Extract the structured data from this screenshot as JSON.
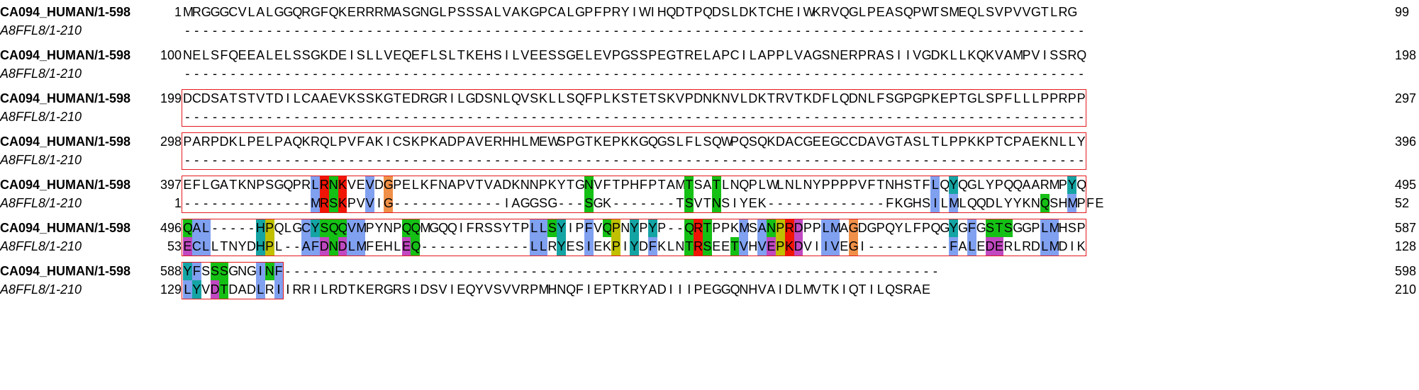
{
  "alignment": {
    "blocks": [
      {
        "top": {
          "name": "CA094_HUMAN/1-598",
          "start": "1",
          "seq": "MRGGGCVLALGGQRGFQKERRRMASGNGLPSSSALVAKGPCALGPFPRYIWIHQDTPQDSLDKTCHEIWKRVQGLPEASQPWTSMEQLSVPVVGTLRG",
          "end": "99"
        },
        "bottom": {
          "name": "A8FFL8/1-210",
          "start": "",
          "seq": "---------------------------------------------------------------------------------------------------",
          "end": ""
        },
        "frame_cols": null
      },
      {
        "top": {
          "name": "CA094_HUMAN/1-598",
          "start": "100",
          "seq": "NELSFQEEALELSSGKDEISLLVEQEFLSLTKEHSILVEESSGELEVPGSSPEGTRELAPCILAPPLVAGSNERPRASIIVGDKLLKQKVAMPVISSRQ",
          "end": "198"
        },
        "bottom": {
          "name": "A8FFL8/1-210",
          "start": "",
          "seq": "---------------------------------------------------------------------------------------------------",
          "end": ""
        },
        "frame_cols": null
      },
      {
        "top": {
          "name": "CA094_HUMAN/1-598",
          "start": "199",
          "seq": "DCDSATSTVTDILCAAEVKSSKGTEDRGRILGDSNLQVSKLLSQFPLKSTETSKVPDNKNVLDKTRVTKDFLQDNLFSGPGPKEPTGLSPFLLLPPRPP",
          "end": "297"
        },
        "bottom": {
          "name": "A8FFL8/1-210",
          "start": "",
          "seq": "---------------------------------------------------------------------------------------------------",
          "end": ""
        },
        "frame_cols": [
          0,
          99
        ]
      },
      {
        "top": {
          "name": "CA094_HUMAN/1-598",
          "start": "298",
          "seq": "PARPDKLPELPAQKRQLPVFAKICSKPKADPAVERHHLMEWSPGTKEPKKGQGSLFLSQWPQSQKDACGEEGCCDAVGTASLTLPPKKPTCPAEKNLLY",
          "end": "396"
        },
        "bottom": {
          "name": "A8FFL8/1-210",
          "start": "",
          "seq": "---------------------------------------------------------------------------------------------------",
          "end": ""
        },
        "frame_cols": [
          0,
          99
        ]
      },
      {
        "top": {
          "name": "CA094_HUMAN/1-598",
          "start": "397",
          "seq": "EFLGATKNPSGQPRLRNKVEVDGPELKFNAPVTVADKNNPKYTGNVFTPHFPTAMTSATLNQPLWLNLNYPPPPVFTNHSTFLQYQGLYPQQAARMPYQ",
          "end": "495"
        },
        "bottom": {
          "name": "A8FFL8/1-210",
          "start": "1",
          "seq": "--------------MRSKPVVIG------------IAGGSG---SGK-------TSVTNSIYEK-------------FKGHSILMLQQDLYYKNQSHMPFE",
          "end": "52"
        },
        "frame_cols": [
          0,
          99
        ]
      },
      {
        "top": {
          "name": "CA094_HUMAN/1-598",
          "start": "496",
          "seq": "QAL-----HPQLGCYSQQVMPYNPQQMGQQIFRSSYTPLLSYIPFVQPNYPYP--QRTPPKMSANPRDPPLMAGDGPQYLFPQGYGFGSTSGGPLMHSP",
          "end": "587"
        },
        "bottom": {
          "name": "A8FFL8/1-210",
          "start": "53",
          "seq": "ECLLTNYDHPL--AFDNDLMFEHLEQ------------LLRYESIEKPIYDFKLNTRSEETVHVEPKDVIIVEGI---------FALEDERLRDLMDIK",
          "end": "128"
        },
        "frame_cols": [
          0,
          99
        ]
      },
      {
        "top": {
          "name": "CA094_HUMAN/1-598",
          "start": "588",
          "seq": "YFSSSGNGINF------------------------------------------------------------------------",
          "end": "598"
        },
        "bottom": {
          "name": "A8FFL8/1-210",
          "start": "129",
          "seq": "LYVDTDADLRIIRRILRDTKERGRSIDSVIEQYVSVVRPMHNQFIEPTKRYADIIIPEGGQNHVAIDLMVTKIQTILQSRAE",
          "end": "210"
        },
        "frame_cols": [
          0,
          11
        ]
      }
    ],
    "colors": {
      "hydrophobic": "#80a0f0",
      "positive": "#f01505",
      "negative": "#c048c0",
      "polar": "#15c015",
      "cysteine": "#f08080",
      "glycine": "#f09048",
      "proline": "#c0c000",
      "aromatic": "#15a4a4",
      "frame": "#e41a1c"
    },
    "colored_from_block": 4
  }
}
